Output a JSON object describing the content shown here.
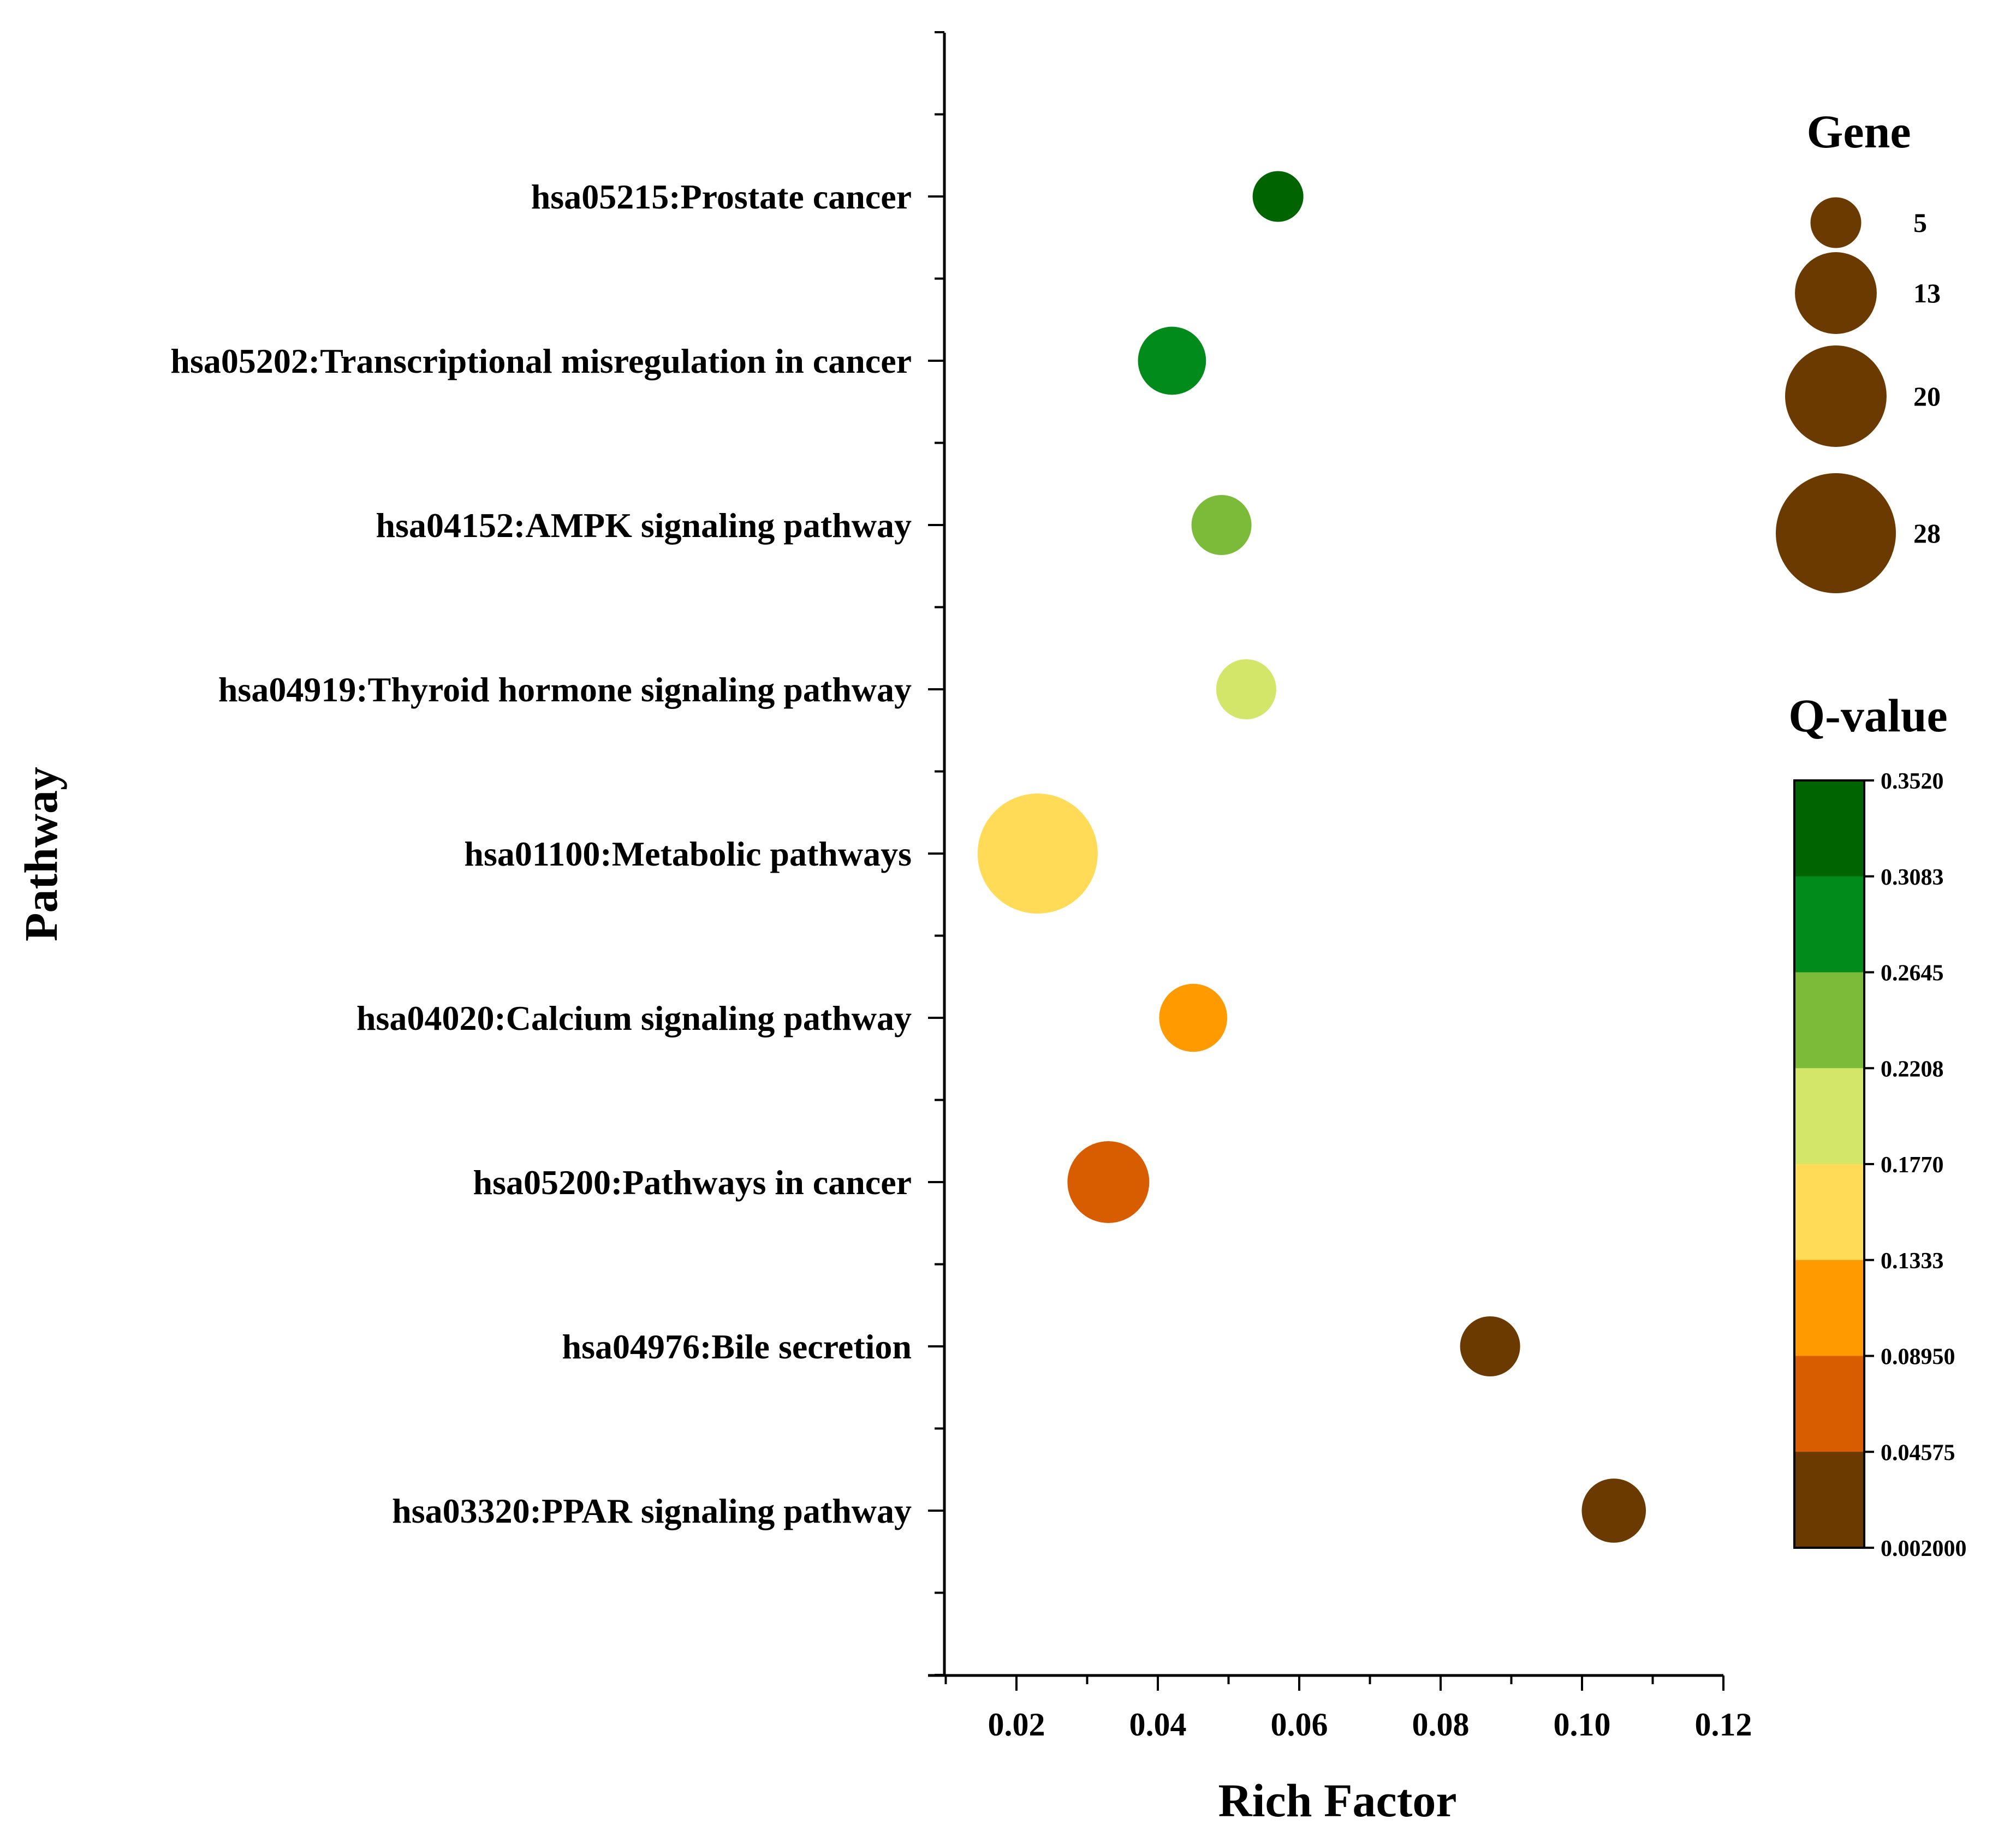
{
  "chart_data": {
    "type": "scatter",
    "subtype": "bubble",
    "xlabel": "Rich Factor",
    "ylabel": "Pathway",
    "xlim": [
      0.01,
      0.12
    ],
    "x_ticks": [
      "0.02",
      "0.04",
      "0.06",
      "0.08",
      "0.10",
      "0.12"
    ],
    "points": [
      {
        "pathway": "hsa05215:Prostate cancer",
        "rich_factor": 0.057,
        "gene": 5,
        "q_value": 0.34
      },
      {
        "pathway": "hsa05202:Transcriptional misregulation in cancer",
        "rich_factor": 0.042,
        "gene": 9,
        "q_value": 0.29
      },
      {
        "pathway": "hsa04152:AMPK signaling pathway",
        "rich_factor": 0.049,
        "gene": 7,
        "q_value": 0.24
      },
      {
        "pathway": "hsa04919:Thyroid hormone signaling pathway",
        "rich_factor": 0.0525,
        "gene": 7,
        "q_value": 0.2
      },
      {
        "pathway": "hsa01100:Metabolic pathways",
        "rich_factor": 0.023,
        "gene": 28,
        "q_value": 0.155
      },
      {
        "pathway": "hsa04020:Calcium signaling pathway",
        "rich_factor": 0.045,
        "gene": 9,
        "q_value": 0.11
      },
      {
        "pathway": "hsa05200:Pathways in cancer",
        "rich_factor": 0.033,
        "gene": 13,
        "q_value": 0.068
      },
      {
        "pathway": "hsa04976:Bile secretion",
        "rich_factor": 0.087,
        "gene": 7,
        "q_value": 0.02
      },
      {
        "pathway": "hsa03320:PPAR signaling pathway",
        "rich_factor": 0.1045,
        "gene": 8,
        "q_value": 0.02
      }
    ],
    "size_legend": {
      "title": "Gene",
      "entries": [
        {
          "label": "5",
          "value": 5
        },
        {
          "label": "13",
          "value": 13
        },
        {
          "label": "20",
          "value": 20
        },
        {
          "label": "28",
          "value": 28
        }
      ],
      "color": "#6b3a00"
    },
    "color_legend": {
      "title": "Q-value",
      "tick_labels": [
        "0.3520",
        "0.3083",
        "0.2645",
        "0.2208",
        "0.1770",
        "0.1333",
        "0.08950",
        "0.04575",
        "0.002000"
      ],
      "bins": [
        {
          "min": 0.3083,
          "max": 0.352,
          "color": "#006400"
        },
        {
          "min": 0.2645,
          "max": 0.3083,
          "color": "#008b1a"
        },
        {
          "min": 0.2208,
          "max": 0.2645,
          "color": "#7cbb3a"
        },
        {
          "min": 0.177,
          "max": 0.2208,
          "color": "#d3e66a"
        },
        {
          "min": 0.1333,
          "max": 0.177,
          "color": "#ffdb58"
        },
        {
          "min": 0.0895,
          "max": 0.1333,
          "color": "#ff9a00"
        },
        {
          "min": 0.04575,
          "max": 0.0895,
          "color": "#d85d00"
        },
        {
          "min": 0.002,
          "max": 0.04575,
          "color": "#6b3a00"
        }
      ]
    }
  }
}
